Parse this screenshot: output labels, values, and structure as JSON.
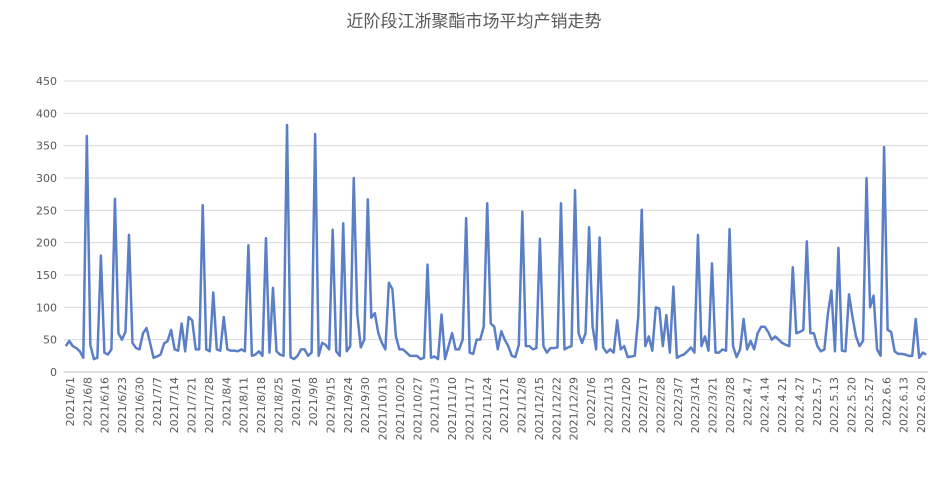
{
  "chart_data": {
    "type": "line",
    "title": "近阶段江浙聚酯市场平均产销走势",
    "xlabel": "",
    "ylabel": "",
    "ylim": [
      0,
      450
    ],
    "y_ticks": [
      0,
      50,
      100,
      150,
      200,
      250,
      300,
      350,
      400,
      450
    ],
    "grid": "horizontal",
    "legend": "none",
    "x_tick_labels": [
      "2021/6/1",
      "2021/6/8",
      "2021/6/16",
      "2021/6/23",
      "2021/6/30",
      "2021/7/7",
      "2021/7/14",
      "2021/7/21",
      "2021/7/28",
      "2021/8/4",
      "2021/8/11",
      "2021/8/18",
      "2021/8/25",
      "2021/9/1",
      "2021/9/8",
      "2021/9/15",
      "2021/9/24",
      "2021/9/30",
      "2021/10/13",
      "2021/10/20",
      "2021/10/27",
      "2021/11/3",
      "2021/11/10",
      "2021/11/17",
      "2021/11/24",
      "2021/12/1",
      "2021/12/8",
      "2021/12/15",
      "2021/12/22",
      "2021/12/29",
      "2022/1/6",
      "2022/1/13",
      "2022/1/20",
      "2022/2/17",
      "2022/2/28",
      "2022/3/7",
      "2022/3/14",
      "2022/3/21",
      "2022/3/28",
      "2022.4.7",
      "2022.4.14",
      "2022.4.21",
      "2022.4.27",
      "2022.5.7",
      "2022.5.13",
      "2022.5.20",
      "2022.5.27",
      "2022.6.6",
      "2022.6.13",
      "2022.6.20"
    ],
    "series": [
      {
        "name": "",
        "color": "#5B7FC7",
        "values": [
          40,
          48,
          40,
          37,
          32,
          22,
          365,
          42,
          20,
          22,
          180,
          30,
          27,
          35,
          268,
          60,
          50,
          62,
          212,
          45,
          37,
          35,
          60,
          68,
          45,
          22,
          24,
          27,
          44,
          48,
          65,
          35,
          33,
          75,
          32,
          85,
          80,
          35,
          35,
          258,
          35,
          32,
          123,
          35,
          33,
          85,
          35,
          33,
          33,
          32,
          35,
          32,
          196,
          25,
          27,
          32,
          25,
          207,
          30,
          130,
          32,
          27,
          25,
          382,
          23,
          20,
          25,
          35,
          35,
          25,
          30,
          368,
          25,
          45,
          42,
          35,
          220,
          32,
          25,
          230,
          32,
          40,
          300,
          90,
          38,
          50,
          267,
          84,
          91,
          60,
          45,
          35,
          138,
          128,
          55,
          35,
          35,
          30,
          25,
          25,
          25,
          20,
          22,
          166,
          22,
          24,
          20,
          89,
          20,
          40,
          60,
          35,
          35,
          50,
          238,
          30,
          28,
          50,
          50,
          70,
          261,
          75,
          70,
          35,
          63,
          50,
          40,
          25,
          23,
          42,
          248,
          40,
          40,
          35,
          37,
          206,
          40,
          30,
          37,
          37,
          38,
          261,
          35,
          38,
          40,
          281,
          60,
          45,
          60,
          224,
          70,
          35,
          208,
          38,
          30,
          35,
          30,
          80,
          35,
          40,
          23,
          24,
          25,
          85,
          251,
          40,
          55,
          33,
          100,
          98,
          40,
          88,
          30,
          132,
          22,
          25,
          27,
          32,
          38,
          30,
          212,
          40,
          55,
          33,
          168,
          30,
          30,
          35,
          33,
          221,
          40,
          23,
          35,
          82,
          35,
          48,
          35,
          60,
          70,
          70,
          62,
          50,
          55,
          50,
          45,
          42,
          40,
          162,
          60,
          62,
          65,
          202,
          60,
          60,
          40,
          32,
          35,
          90,
          126,
          32,
          192,
          33,
          32,
          120,
          85,
          55,
          40,
          48,
          300,
          100,
          118,
          35,
          25,
          348,
          65,
          62,
          32,
          28,
          28,
          27,
          25,
          25,
          82,
          22,
          30,
          27
        ]
      }
    ]
  }
}
